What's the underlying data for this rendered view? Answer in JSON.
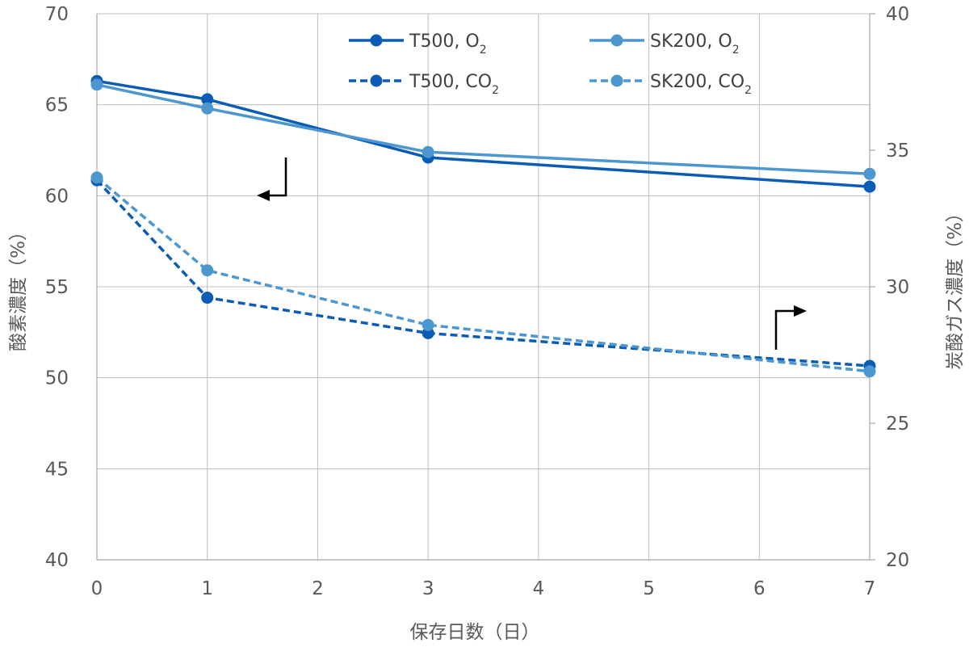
{
  "chart_data": {
    "type": "line",
    "x_ticks": [
      0,
      1,
      2,
      3,
      4,
      5,
      6,
      7
    ],
    "y_left_ticks": [
      40,
      45,
      50,
      55,
      60,
      65,
      70
    ],
    "y_right_ticks": [
      20,
      25,
      30,
      35,
      40
    ],
    "xlim": [
      0,
      7
    ],
    "ylim_left": [
      40,
      70
    ],
    "ylim_right": [
      20,
      40
    ],
    "xlabel": "保存日数（日）",
    "ylabel_left": "酸素濃度（%）",
    "ylabel_right": "炭酸ガス濃度（%）",
    "grid": true,
    "legend_position": "top",
    "series": [
      {
        "name": "T500, O",
        "subscript": "2",
        "axis": "left",
        "style": "solid",
        "color": "#0B5CB5",
        "x": [
          0,
          1,
          3,
          7
        ],
        "y": [
          66.3,
          65.3,
          62.1,
          60.5
        ]
      },
      {
        "name": "SK200, O",
        "subscript": "2",
        "axis": "left",
        "style": "solid",
        "color": "#4D97D1",
        "x": [
          0,
          1,
          3,
          7
        ],
        "y": [
          66.1,
          64.8,
          62.4,
          61.2
        ]
      },
      {
        "name": "T500, CO",
        "subscript": "2",
        "axis": "right",
        "style": "dashed",
        "color": "#0B5CB5",
        "x": [
          0,
          1,
          3,
          7
        ],
        "y": [
          33.9,
          29.6,
          28.3,
          27.1
        ]
      },
      {
        "name": "SK200, CO",
        "subscript": "2",
        "axis": "right",
        "style": "dashed",
        "color": "#4D97D1",
        "x": [
          0,
          1,
          3,
          7
        ],
        "y": [
          34.0,
          30.6,
          28.6,
          26.9
        ]
      }
    ],
    "annotations": [
      {
        "kind": "arrow",
        "points_to": "left-axis"
      },
      {
        "kind": "arrow",
        "points_to": "right-axis"
      }
    ]
  }
}
